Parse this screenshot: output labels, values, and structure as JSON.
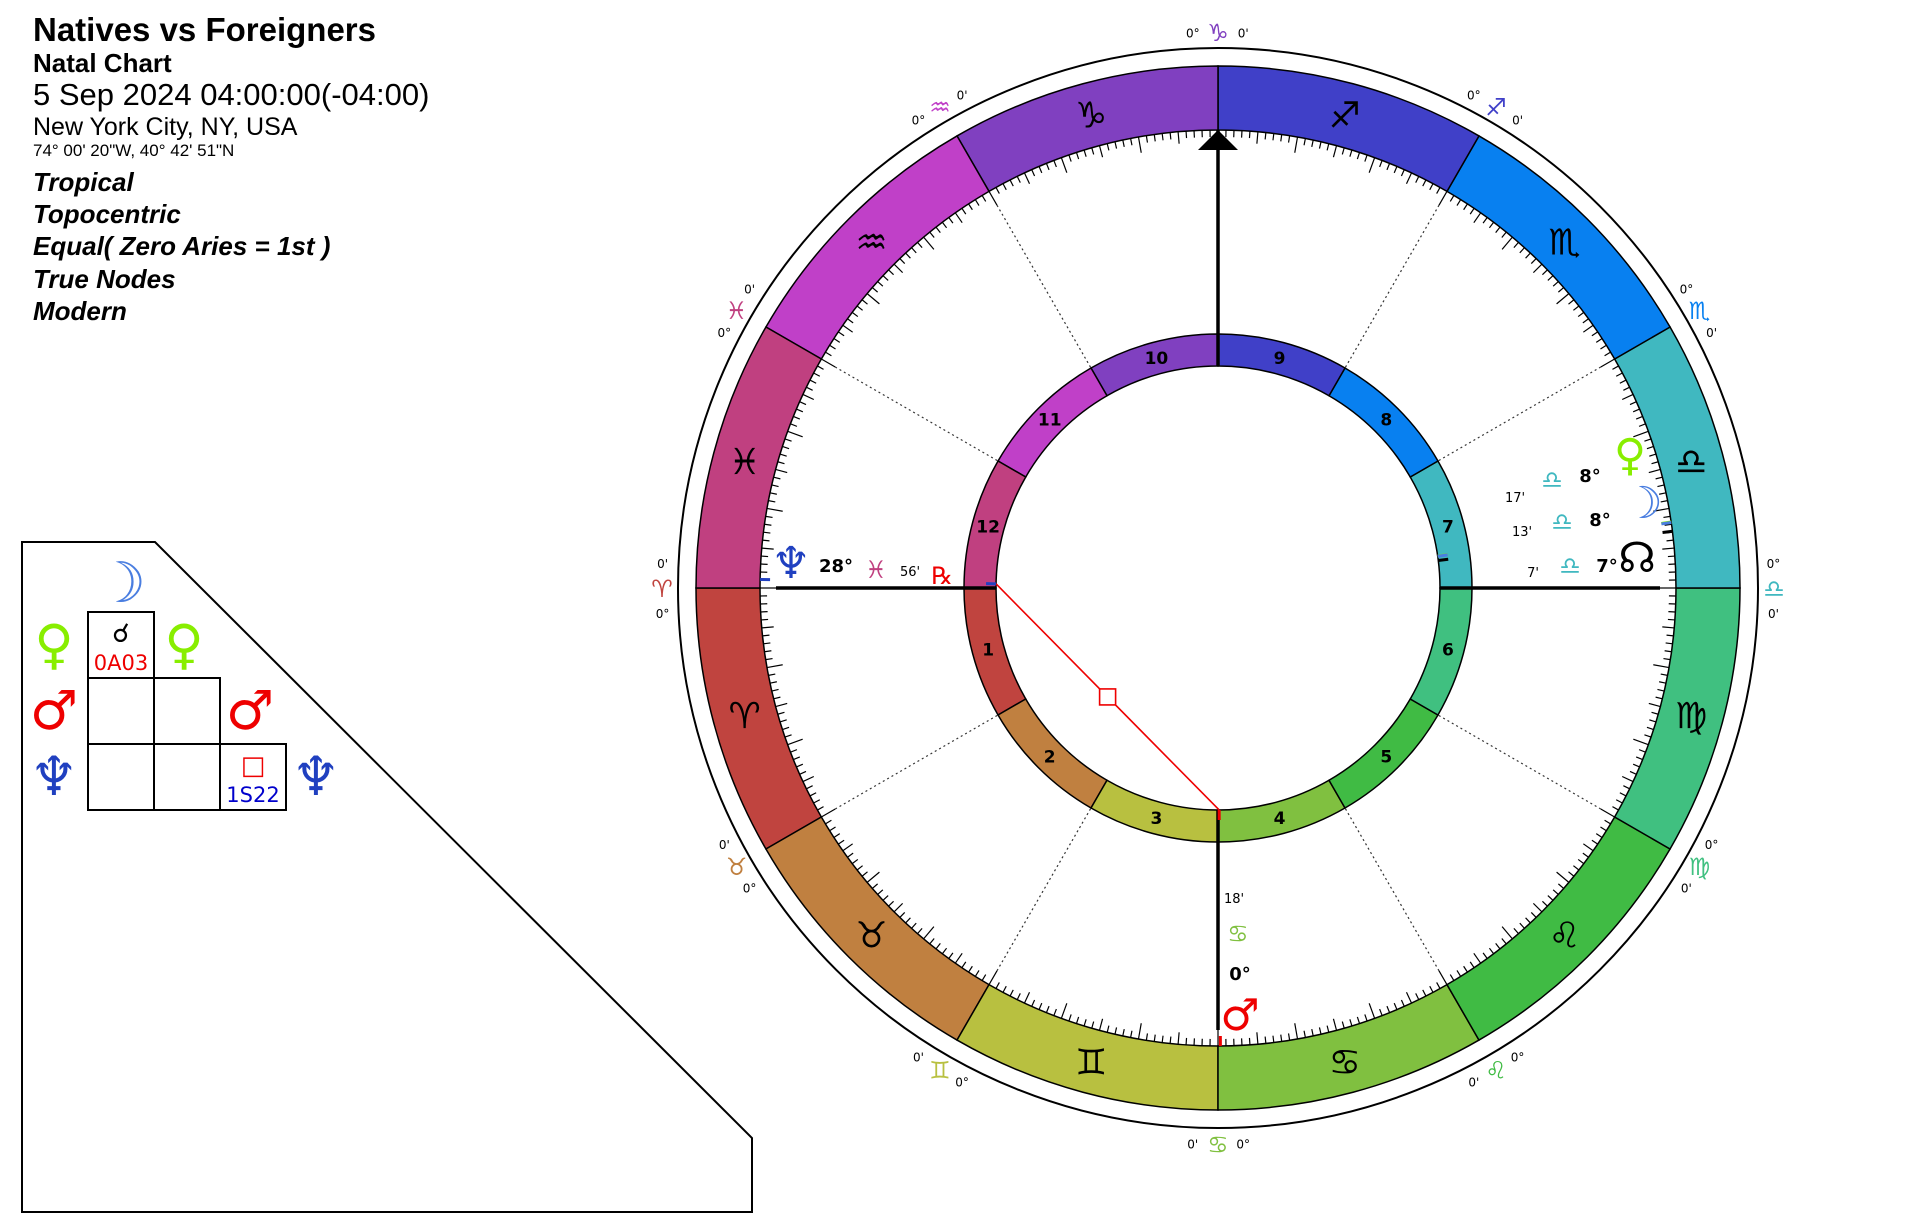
{
  "header": {
    "title": "Natives vs Foreigners",
    "chart_type": "Natal Chart",
    "datetime": "5 Sep 2024 04:00:00(-04:00)",
    "location": "New York City, NY, USA",
    "coordinates": "74° 00' 20\"W, 40° 42' 51\"N",
    "zodiac": "Tropical",
    "perspective": "Topocentric",
    "house_system": "Equal( Zero Aries = 1st )",
    "nodes": "True Nodes",
    "rulership": "Modern"
  },
  "signs": [
    {
      "name": "Aries",
      "glyph": "♈",
      "color": "#c0443f"
    },
    {
      "name": "Taurus",
      "glyph": "♉",
      "color": "#c08040"
    },
    {
      "name": "Gemini",
      "glyph": "♊",
      "color": "#b8c040"
    },
    {
      "name": "Cancer",
      "glyph": "♋",
      "color": "#80c040"
    },
    {
      "name": "Leo",
      "glyph": "♌",
      "color": "#40bb44"
    },
    {
      "name": "Virgo",
      "glyph": "♍",
      "color": "#40c080"
    },
    {
      "name": "Libra",
      "glyph": "♎",
      "color": "#40b8c0"
    },
    {
      "name": "Scorpio",
      "glyph": "♏",
      "color": "#0880f0"
    },
    {
      "name": "Sagittarius",
      "glyph": "♐",
      "color": "#4040c8"
    },
    {
      "name": "Capricorn",
      "glyph": "♑",
      "color": "#8040c0"
    },
    {
      "name": "Aquarius",
      "glyph": "♒",
      "color": "#c040c8"
    },
    {
      "name": "Pisces",
      "glyph": "♓",
      "color": "#c04080"
    }
  ],
  "houses": [
    {
      "number": "1",
      "color": "#c0443f"
    },
    {
      "number": "2",
      "color": "#c08040"
    },
    {
      "number": "3",
      "color": "#b8c040"
    },
    {
      "number": "4",
      "color": "#80c040"
    },
    {
      "number": "5",
      "color": "#40bb44"
    },
    {
      "number": "6",
      "color": "#40c080"
    },
    {
      "number": "7",
      "color": "#40b8c0"
    },
    {
      "number": "8",
      "color": "#0880f0"
    },
    {
      "number": "9",
      "color": "#4040c8"
    },
    {
      "number": "10",
      "color": "#8040c0"
    },
    {
      "number": "11",
      "color": "#c040c8"
    },
    {
      "number": "12",
      "color": "#c04080"
    }
  ],
  "cusp_labels": {
    "deg": "0°",
    "min": "0'"
  },
  "planets": [
    {
      "name": "Venus",
      "glyph": "♀",
      "color": "#88ee00",
      "longitude": 188.28,
      "degree": "8°",
      "minute": "17'",
      "sign_glyph": "♎",
      "sign_color": "#40b8c0",
      "retrograde": ""
    },
    {
      "name": "Moon",
      "glyph": "☽",
      "color": "#4a7ee0",
      "longitude": 188.22,
      "degree": "8°",
      "minute": "13'",
      "sign_glyph": "♎",
      "sign_color": "#40b8c0",
      "retrograde": ""
    },
    {
      "name": "North Node",
      "glyph": "☊",
      "color": "#000000",
      "longitude": 187.12,
      "degree": "7°",
      "minute": "7'",
      "sign_glyph": "♎",
      "sign_color": "#40b8c0",
      "retrograde": ""
    },
    {
      "name": "Neptune",
      "glyph": "♆",
      "color": "#2040c0",
      "longitude": 358.93,
      "degree": "28°",
      "minute": "56'",
      "sign_glyph": "♓",
      "sign_color": "#c04080",
      "retrograde": "℞"
    },
    {
      "name": "Mars",
      "glyph": "♂",
      "color": "#ee0000",
      "longitude": 90.3,
      "degree": "0°",
      "minute": "18'",
      "sign_glyph": "♋",
      "sign_color": "#80c040",
      "retrograde": ""
    }
  ],
  "aspects": [
    {
      "from": "Neptune",
      "to": "Mars",
      "type": "square",
      "glyph": "□",
      "color": "#ee0000"
    }
  ],
  "aspect_grid": {
    "rows": [
      {
        "planet": "Moon",
        "glyph": "☽",
        "color": "#4a7ee0"
      },
      {
        "planet": "Venus",
        "glyph": "♀",
        "color": "#88ee00"
      },
      {
        "planet": "Mars",
        "glyph": "♂",
        "color": "#ee0000"
      },
      {
        "planet": "Neptune",
        "glyph": "♆",
        "color": "#2040c0"
      }
    ],
    "cells": [
      {
        "row": 1,
        "col": 0,
        "glyph": "☌",
        "color": "#000000",
        "orb": "0A03",
        "orb_color": "#ee0000"
      },
      {
        "row": 3,
        "col": 2,
        "glyph": "□",
        "color": "#ee0000",
        "orb": "1S22",
        "orb_color": "#0000cc"
      }
    ]
  }
}
